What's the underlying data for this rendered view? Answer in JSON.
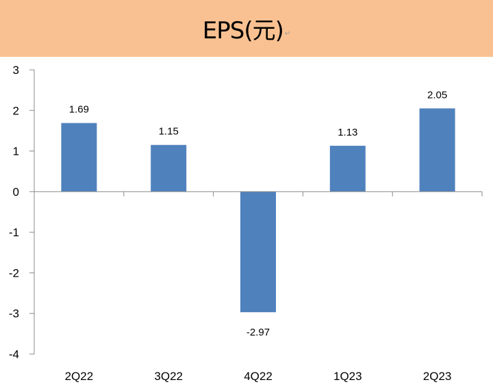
{
  "header": {
    "title": "EPS(元)"
  },
  "chart_data": {
    "type": "bar",
    "title": "EPS(元)",
    "categories": [
      "2Q22",
      "3Q22",
      "4Q22",
      "1Q23",
      "2Q23"
    ],
    "values": [
      1.69,
      1.15,
      -2.97,
      1.13,
      2.05
    ],
    "data_labels": [
      "1.69",
      "1.15",
      "-2.97",
      "1.13",
      "2.05"
    ],
    "ylim": [
      -4,
      3
    ],
    "yticks": [
      "3",
      "2",
      "1",
      "0",
      "-1",
      "-2",
      "-3",
      "-4"
    ],
    "xlabel": "",
    "ylabel": "",
    "grid": false,
    "bar_color": "#4F81BD",
    "header_color": "#F9C191"
  }
}
